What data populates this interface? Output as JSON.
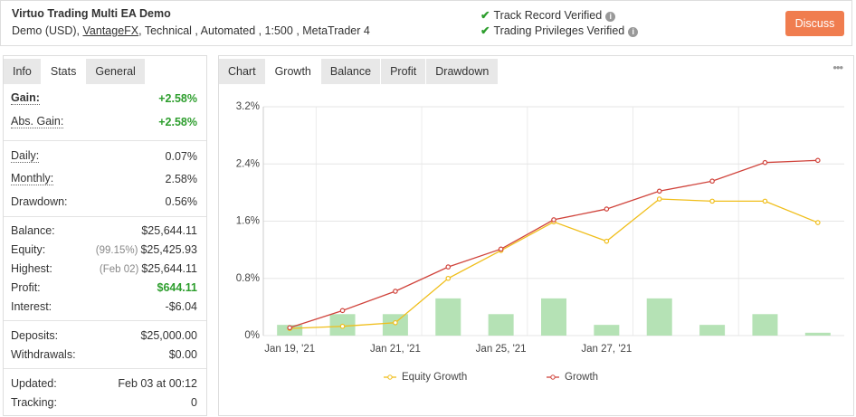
{
  "header": {
    "title": "Virtuo Trading Multi EA Demo",
    "subtitle_prefix": "Demo (USD),",
    "broker": "VantageFX",
    "subtitle_suffix": ", Technical , Automated , 1:500 , MetaTrader 4",
    "verifications": [
      "Track Record Verified",
      "Trading Privileges Verified"
    ],
    "button": "Discuss"
  },
  "stats": {
    "tabs": [
      "Info",
      "Stats",
      "General"
    ],
    "active_tab": "Stats",
    "groups": [
      [
        {
          "label": "Gain:",
          "value": "+2.58%",
          "color": "#2e9e2e",
          "underline": true,
          "bold": true
        },
        {
          "label": "Abs. Gain:",
          "value": "+2.58%",
          "color": "#2e9e2e",
          "underline": true
        }
      ],
      [
        {
          "label": "Daily:",
          "value": "0.07%",
          "underline": true
        },
        {
          "label": "Monthly:",
          "value": "2.58%",
          "underline": true
        },
        {
          "label": "Drawdown:",
          "value": "0.56%"
        }
      ],
      [
        {
          "label": "Balance:",
          "value": "$25,644.11"
        },
        {
          "label": "Equity:",
          "note": "(99.15%)",
          "value": "$25,425.93"
        },
        {
          "label": "Highest:",
          "note": "(Feb 02)",
          "value": "$25,644.11"
        },
        {
          "label": "Profit:",
          "value": "$644.11",
          "color": "#2e9e2e"
        },
        {
          "label": "Interest:",
          "value": "-$6.04"
        }
      ],
      [
        {
          "label": "Deposits:",
          "value": "$25,000.00"
        },
        {
          "label": "Withdrawals:",
          "value": "$0.00"
        }
      ],
      [
        {
          "label": "Updated:",
          "value": "Feb 03 at 00:12"
        },
        {
          "label": "Tracking:",
          "value": "0"
        }
      ]
    ]
  },
  "chart_tabs": {
    "tabs": [
      "Chart",
      "Growth",
      "Balance",
      "Profit",
      "Drawdown"
    ],
    "active_tab": "Growth",
    "menu": "•••"
  },
  "chart_data": {
    "type": "line",
    "categories": [
      "Jan 19, '21",
      null,
      "Jan 21, '21",
      null,
      "Jan 25, '21",
      null,
      "Jan 27, '21",
      null,
      null,
      null,
      null
    ],
    "series": [
      {
        "name": "Equity Growth",
        "color": "#f0be1a",
        "values": [
          0.1,
          0.13,
          0.18,
          0.8,
          1.19,
          1.59,
          1.32,
          1.91,
          1.88,
          1.88,
          1.58
        ]
      },
      {
        "name": "Growth",
        "color": "#d0433b",
        "values": [
          0.11,
          0.35,
          0.62,
          0.96,
          1.21,
          1.62,
          1.77,
          2.02,
          2.16,
          2.42,
          2.45
        ]
      }
    ],
    "bars": {
      "color": "#b5e2b5",
      "values": [
        0.15,
        0.3,
        0.3,
        0.52,
        0.3,
        0.52,
        0.15,
        0.52,
        0.15,
        0.3,
        0.04
      ]
    },
    "ylim": [
      0,
      3.2
    ],
    "yticks": [
      {
        "value": 0,
        "label": "0%"
      },
      {
        "value": 0.8,
        "label": "0.8%"
      },
      {
        "value": 1.6,
        "label": "1.6%"
      },
      {
        "value": 2.4,
        "label": "2.4%"
      },
      {
        "value": 3.2,
        "label": "3.2%"
      }
    ],
    "grid": true,
    "legend": "bottom"
  }
}
